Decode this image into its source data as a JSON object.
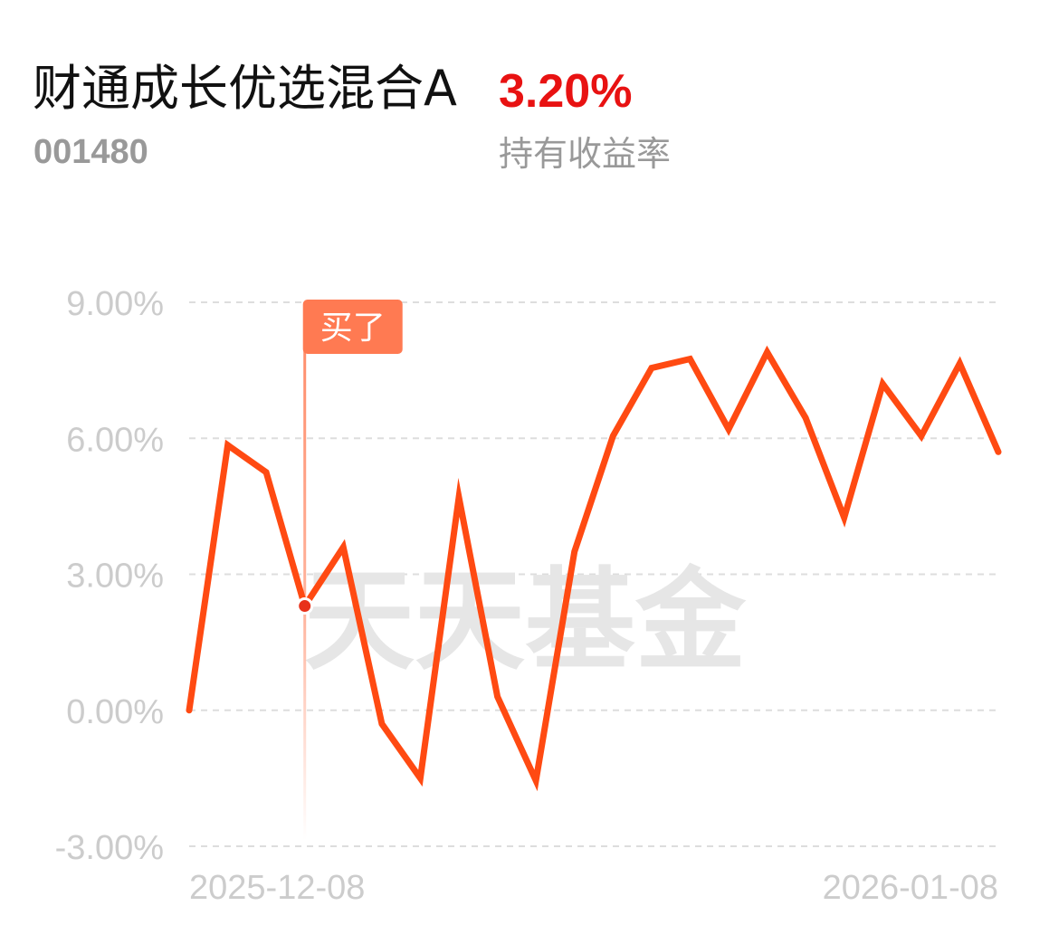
{
  "header": {
    "fund_name": "财通成长优选混合A",
    "fund_code": "001480",
    "holding_return_value": "3.20%",
    "holding_return_label": "持有收益率"
  },
  "colors": {
    "line": "#ff4a12",
    "marker": "#e8311a",
    "positive": "#e81212",
    "buy_tag": "#ff7a52",
    "grid": "#dddddd",
    "axis_text": "#cccccc",
    "watermark": "#e6e6e6"
  },
  "watermark": "天天基金",
  "buy_marker": {
    "label": "买了",
    "index": 3
  },
  "chart_data": {
    "type": "line",
    "title": "",
    "xlabel": "",
    "ylabel": "",
    "ylim": [
      -3,
      9
    ],
    "y_ticks": [
      9,
      6,
      3,
      0,
      -3
    ],
    "y_tick_labels": [
      "9.00%",
      "6.00%",
      "3.00%",
      "0.00%",
      "-3.00%"
    ],
    "x_labels": [
      "2025-12-08",
      "2026-01-08"
    ],
    "grid": true,
    "grid_style": "dashed",
    "legend": "none",
    "series": [
      {
        "values": [
          0.0,
          5.85,
          5.25,
          2.3,
          3.6,
          -0.3,
          -1.5,
          4.7,
          0.3,
          -1.55,
          3.5,
          6.05,
          7.55,
          7.75,
          6.2,
          7.9,
          6.45,
          4.25,
          7.2,
          6.05,
          7.65,
          5.7
        ]
      }
    ]
  }
}
